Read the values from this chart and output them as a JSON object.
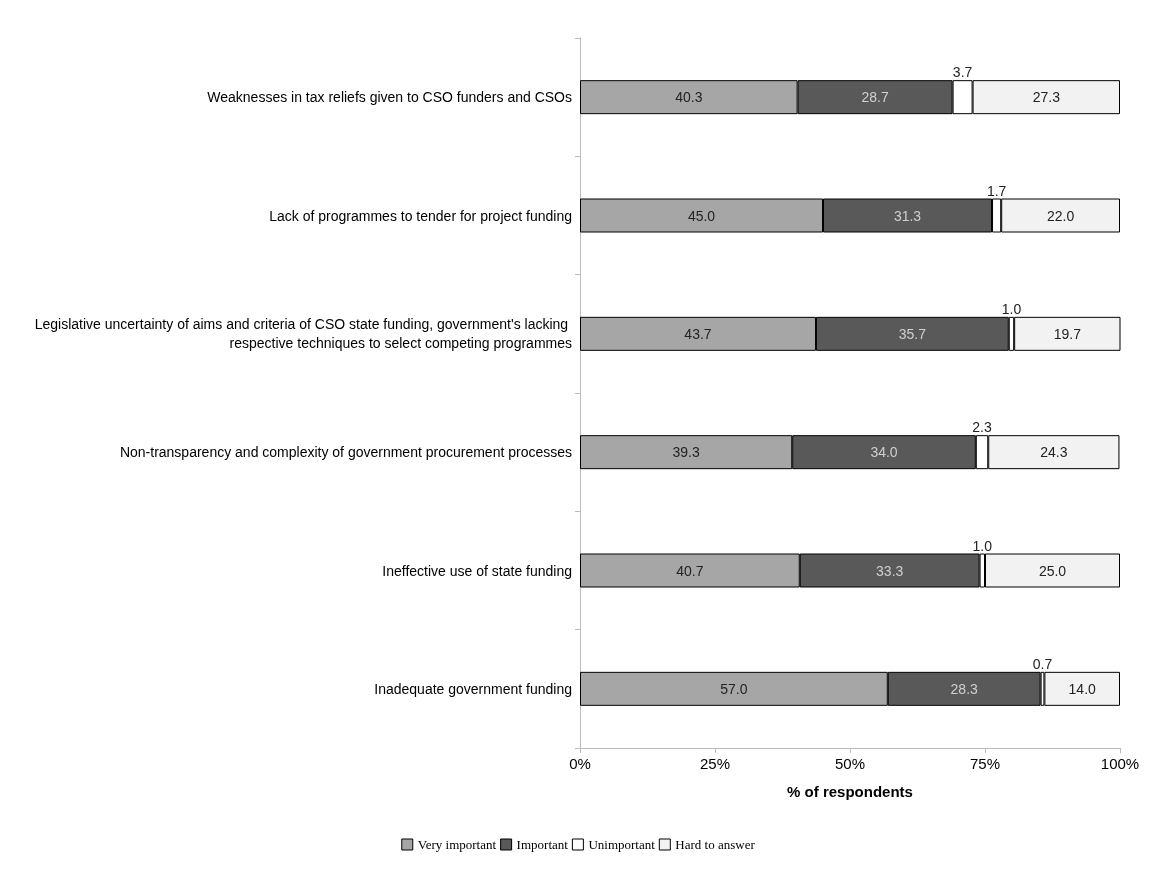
{
  "chart_data": {
    "type": "bar",
    "orientation": "horizontal",
    "stacked": true,
    "xlabel": "% of respondents",
    "categories": [
      "Weaknesses in tax reliefs given to CSO funders and CSOs",
      "Lack of programmes to tender for project funding",
      "Legislative uncertainty of aims and criteria of CSO state funding, government's lacking respective techniques to select competing programmes",
      "Non-transparency and complexity of government procurement processes",
      "Ineffective use of state funding",
      "Inadequate government funding"
    ],
    "series": [
      {
        "name": "Very important",
        "color": "#a6a6a6",
        "values": [
          40.3,
          45.0,
          43.7,
          39.3,
          40.7,
          57.0
        ],
        "value_labels": [
          "40.3",
          "45.0",
          "43.7",
          "39.3",
          "40.7",
          "57.0"
        ]
      },
      {
        "name": "Important",
        "color": "#595959",
        "values": [
          28.7,
          31.3,
          35.7,
          34.0,
          33.3,
          28.3
        ],
        "value_labels": [
          "28.7",
          "31.3",
          "35.7",
          "34.0",
          "33.3",
          "28.3"
        ]
      },
      {
        "name": "Unimportant",
        "color": "#ffffff",
        "values": [
          3.7,
          1.7,
          1.0,
          2.3,
          1.0,
          0.7
        ],
        "value_labels": [
          "3.7",
          "1.7",
          "1.0",
          "2.3",
          "1.0",
          "0.7"
        ]
      },
      {
        "name": "Hard to answer",
        "color": "#f2f2f2",
        "values": [
          27.3,
          22.0,
          19.7,
          24.3,
          25.0,
          14.0
        ],
        "value_labels": [
          "27.3",
          "22.0",
          "19.7",
          "24.3",
          "25.0",
          "14.0"
        ]
      }
    ],
    "xlim": [
      0,
      100
    ],
    "xticks": [
      {
        "value": 0,
        "label": "0%"
      },
      {
        "value": 25,
        "label": "25%"
      },
      {
        "value": 50,
        "label": "50%"
      },
      {
        "value": 75,
        "label": "75%"
      },
      {
        "value": 100,
        "label": "100%"
      }
    ],
    "grid": false,
    "legend": "bottom"
  }
}
